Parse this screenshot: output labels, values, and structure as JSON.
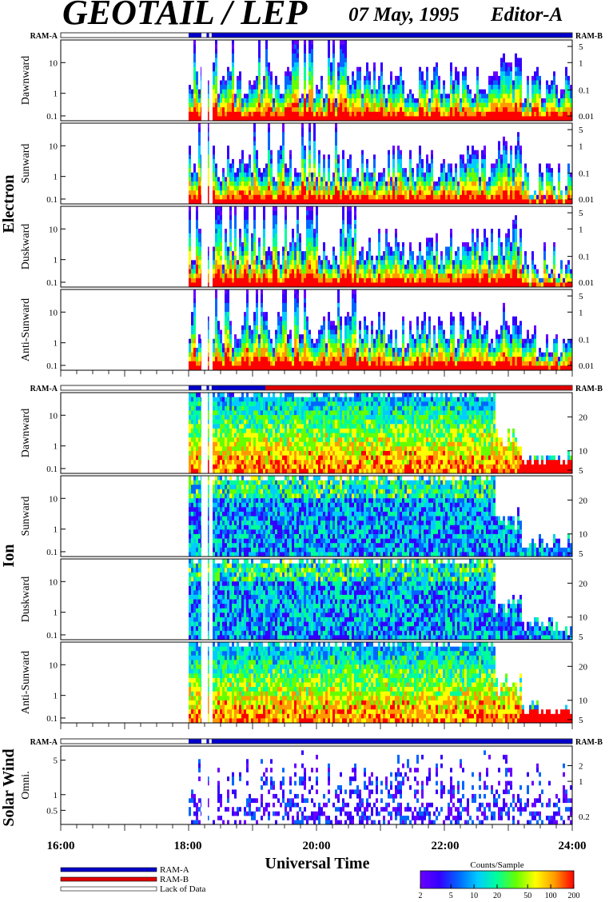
{
  "header": {
    "title": "GEOTAIL / LEP",
    "date": "07 May, 1995",
    "editor": "Editor-A"
  },
  "ram_bar_labels": {
    "left": "RAM-A",
    "right": "RAM-B"
  },
  "groups": [
    {
      "name": "Electron",
      "id": "electron",
      "panels": [
        "Dawnward",
        "Sunward",
        "Duskward",
        "Anti-Sunward"
      ]
    },
    {
      "name": "Ion",
      "id": "ion",
      "panels": [
        "Dawnward",
        "Sunward",
        "Duskward",
        "Anti-Sunward"
      ]
    },
    {
      "name": "Solar Wind",
      "id": "solarwind",
      "panels": [
        "Omni."
      ]
    }
  ],
  "axes": {
    "x_label": "Universal Time",
    "x_ticks": [
      "16:00",
      "18:00",
      "20:00",
      "22:00",
      "24:00"
    ],
    "electron_left_ticks": [
      "10",
      "1",
      "0.1"
    ],
    "electron_right_ticks": [
      "5",
      "1",
      "0.1",
      "0.01"
    ],
    "ion_left_ticks": [
      "10",
      "1",
      "0.1"
    ],
    "ion_right_ticks": [
      "20",
      "10",
      "5"
    ],
    "solarwind_left_ticks": [
      "5",
      "1",
      "0.5"
    ],
    "solarwind_right_ticks": [
      "2",
      "1",
      "0.2"
    ]
  },
  "legend": {
    "ram_a": "RAM-A",
    "ram_b": "RAM-B",
    "lack": "Lack of Data",
    "colorbar_title": "Counts/Sample",
    "colorbar_ticks": [
      "2",
      "5",
      "10",
      "20",
      "50",
      "100",
      "200"
    ],
    "colors": {
      "ram_a": "#0000cc",
      "ram_b": "#e00000",
      "lack": "#ffffff"
    }
  },
  "chart_data": {
    "type": "heatmap",
    "title": "GEOTAIL / LEP",
    "subtitle": "07 May, 1995   Editor-A",
    "xlabel": "Universal Time",
    "x_range_hours": [
      16,
      24
    ],
    "data_start_hour": 18.0,
    "data_gaps_hours": [
      [
        18.2,
        18.28
      ],
      [
        18.32,
        18.36
      ]
    ],
    "log_y": true,
    "colorbar_range_counts": [
      2,
      200
    ],
    "colormap": [
      "#6a00ff",
      "#3300ff",
      "#0066ff",
      "#00ccff",
      "#00ff99",
      "#66ff00",
      "#ffff00",
      "#ff9900",
      "#ff0000"
    ],
    "mode_intervals": {
      "electron": [
        {
          "mode": "RAM-A",
          "from": 18.0,
          "to": 24.0
        }
      ],
      "ion": [
        {
          "mode": "RAM-A",
          "from": 18.0,
          "to": 19.2
        },
        {
          "mode": "RAM-B",
          "from": 19.2,
          "to": 24.0
        }
      ],
      "solarwind": [
        {
          "mode": "RAM-A",
          "from": 18.0,
          "to": 24.0
        }
      ]
    }
  }
}
